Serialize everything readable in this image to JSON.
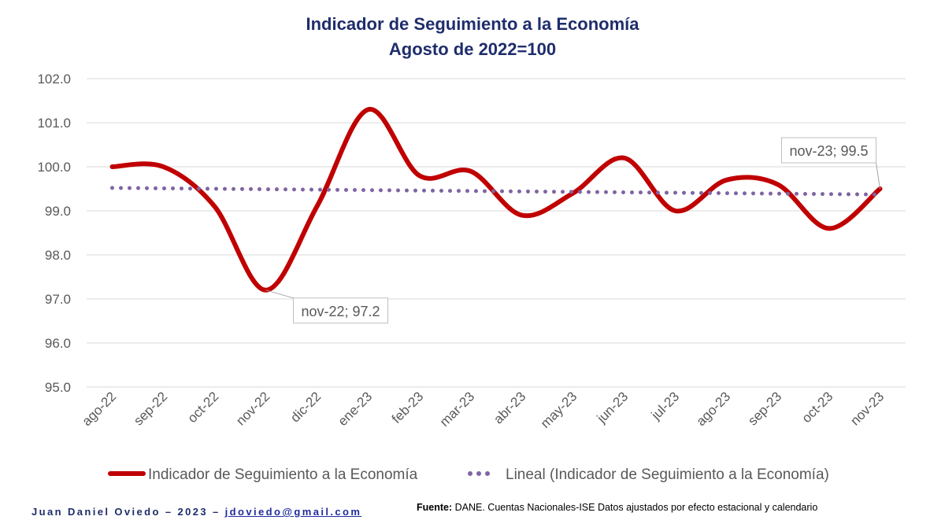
{
  "chart_data": {
    "type": "line",
    "title": "Indicador de Seguimiento a la Economía",
    "subtitle": "Agosto de 2022=100",
    "categories": [
      "ago-22",
      "sep-22",
      "oct-22",
      "nov-22",
      "dic-22",
      "ene-23",
      "feb-23",
      "mar-23",
      "abr-23",
      "may-23",
      "jun-23",
      "jul-23",
      "ago-23",
      "sep-23",
      "oct-23",
      "nov-23"
    ],
    "series": [
      {
        "name": "Indicador de Seguimiento a la Economía",
        "values": [
          100.0,
          100.0,
          99.1,
          97.2,
          99.1,
          101.3,
          99.8,
          99.9,
          98.9,
          99.4,
          100.2,
          99.0,
          99.7,
          99.6,
          98.6,
          99.5
        ],
        "color": "#c00000",
        "style": "solid"
      },
      {
        "name": "Lineal (Indicador de Seguimiento a la Economía)",
        "values": [
          99.52,
          99.51,
          99.5,
          99.49,
          99.48,
          99.47,
          99.46,
          99.45,
          99.44,
          99.43,
          99.42,
          99.41,
          99.4,
          99.39,
          99.38,
          99.37
        ],
        "color": "#8064a2",
        "style": "dotted"
      }
    ],
    "ylim": [
      95.0,
      102.0
    ],
    "yticks": [
      "95.0",
      "96.0",
      "97.0",
      "98.0",
      "99.0",
      "100.0",
      "101.0",
      "102.0"
    ],
    "grid": true,
    "legend": "bottom",
    "annotations": [
      {
        "category": "nov-22",
        "text": "nov-22; 97.2"
      },
      {
        "category": "nov-23",
        "text": "nov-23; 99.5"
      }
    ]
  },
  "footer": {
    "author": "Juan Daniel Oviedo – 2023 – ",
    "email": "jdoviedo@gmail.com",
    "source_label": "Fuente:",
    "source_text": " DANE. Cuentas Nacionales-ISE Datos ajustados por efecto estacional y calendario"
  }
}
